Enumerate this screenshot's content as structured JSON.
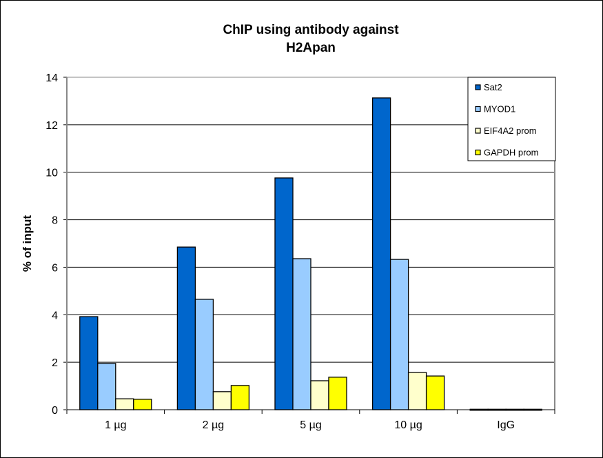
{
  "chart_data": {
    "type": "bar",
    "title": [
      "ChIP using antibody against",
      "H2Apan"
    ],
    "xlabel": "",
    "ylabel": "% of input",
    "ylim": [
      0,
      14
    ],
    "yticks": [
      0,
      2,
      4,
      6,
      8,
      10,
      12,
      14
    ],
    "grid": true,
    "legend_position": "top-right",
    "categories": [
      "1 µg",
      "2 µg",
      "5 µg",
      "10 µg",
      "IgG"
    ],
    "series": [
      {
        "name": "Sat2",
        "color": "#0066CC",
        "values": [
          3.92,
          6.85,
          9.76,
          13.13,
          0.02
        ]
      },
      {
        "name": "MYOD1",
        "color": "#99CCFF",
        "values": [
          1.95,
          4.65,
          6.36,
          6.33,
          0.02
        ]
      },
      {
        "name": "EIF4A2 prom",
        "color": "#FFFFCC",
        "values": [
          0.46,
          0.76,
          1.22,
          1.57,
          0.02
        ]
      },
      {
        "name": "GAPDH prom",
        "color": "#FFFF00",
        "values": [
          0.44,
          1.02,
          1.37,
          1.42,
          0.02
        ]
      }
    ]
  }
}
